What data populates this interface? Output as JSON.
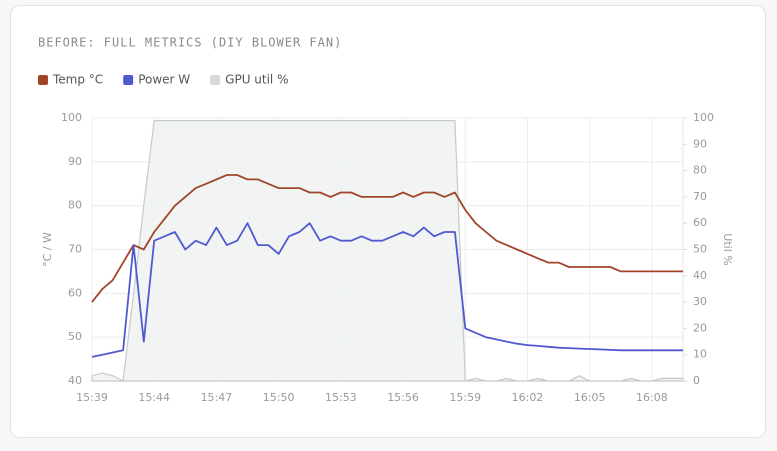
{
  "chart_data": {
    "type": "line",
    "title": "BEFORE: FULL METRICS (DIY BLOWER FAN)",
    "ylabel": "°C / W",
    "y2label": "Util %",
    "categories": [
      "15:39",
      null,
      null,
      null,
      null,
      null,
      "15:44",
      null,
      null,
      null,
      null,
      null,
      "15:47",
      null,
      null,
      null,
      null,
      null,
      "15:50",
      null,
      null,
      null,
      null,
      null,
      "15:53",
      null,
      null,
      null,
      null,
      null,
      "15:56",
      null,
      null,
      null,
      null,
      null,
      "15:59",
      null,
      null,
      null,
      null,
      null,
      "16:02",
      null,
      null,
      null,
      null,
      null,
      "16:05",
      null,
      null,
      null,
      null,
      null,
      "16:08",
      null,
      null,
      null
    ],
    "series": [
      {
        "name": "Temp °C",
        "color": "#a0452a",
        "axis": "y",
        "values": [
          58,
          61,
          63,
          67,
          71,
          70,
          74,
          77,
          80,
          82,
          84,
          85,
          86,
          87,
          87,
          86,
          86,
          85,
          84,
          84,
          84,
          83,
          83,
          82,
          83,
          83,
          82,
          82,
          82,
          82,
          83,
          82,
          83,
          83,
          82,
          83,
          79,
          76,
          74,
          72,
          71,
          70,
          69,
          68,
          67,
          67,
          66,
          66,
          66,
          66,
          66,
          65,
          65,
          65,
          65,
          65,
          65,
          65
        ]
      },
      {
        "name": "Power W",
        "color": "#5059d0",
        "axis": "y",
        "values": [
          45.5,
          46,
          46.5,
          47,
          71,
          49,
          72,
          73,
          74,
          70,
          72,
          71,
          75,
          71,
          72,
          76,
          71,
          71,
          69,
          73,
          74,
          76,
          72,
          73,
          72,
          72,
          73,
          72,
          72,
          73,
          74,
          73,
          75,
          73,
          74,
          74,
          52,
          51,
          50,
          49.5,
          49,
          48.5,
          48.2,
          48,
          47.8,
          47.6,
          47.5,
          47.4,
          47.3,
          47.2,
          47.1,
          47,
          47,
          47,
          47,
          47,
          47,
          47
        ]
      },
      {
        "name": "GPU util %",
        "color": "#c5cbc8",
        "axis": "y2",
        "values": [
          2,
          3,
          2,
          0,
          33,
          67,
          99,
          99,
          99,
          99,
          99,
          99,
          99,
          99,
          99,
          99,
          99,
          99,
          99,
          99,
          99,
          99,
          99,
          99,
          99,
          99,
          99,
          99,
          99,
          99,
          99,
          99,
          99,
          99,
          99,
          99,
          0,
          1,
          0,
          0,
          1,
          0,
          0,
          1,
          0,
          0,
          0,
          2,
          0,
          0,
          0,
          0,
          1,
          0,
          0,
          1,
          1,
          1
        ]
      }
    ],
    "ylim": [
      40,
      100
    ],
    "yticks": [
      40,
      50,
      60,
      70,
      80,
      90,
      100
    ],
    "y2lim": [
      0,
      100
    ],
    "y2ticks": [
      0,
      10,
      20,
      30,
      40,
      50,
      60,
      70,
      80,
      90,
      100
    ],
    "grid": true
  }
}
